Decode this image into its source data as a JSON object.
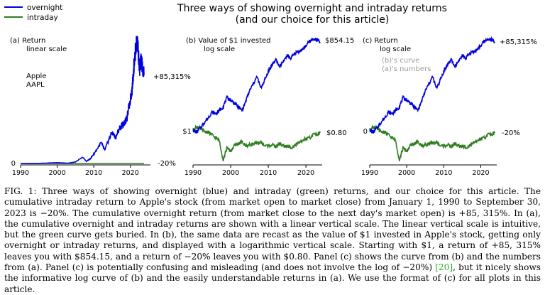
{
  "figure": {
    "title_line1": "Three ways of showing overnight and intraday returns",
    "title_line2": "(and our choice for this article)",
    "legend": [
      {
        "label": "overnight",
        "color": "#0000dd"
      },
      {
        "label": "intraday",
        "color": "#2e7d1e"
      }
    ],
    "panels": [
      {
        "id": "a",
        "label_line1": "(a)  Return",
        "label_line2": "linear scale",
        "company_line1": "Apple",
        "company_line2": "AAPL",
        "end_label_overnight": "+85,315%",
        "end_label_intraday": "-20%",
        "start_label": "0"
      },
      {
        "id": "b",
        "label_line1": "(b)  Value of $1 invested",
        "label_line2": "log scale",
        "end_label_overnight": "$854.15",
        "end_label_intraday": "$0.80",
        "start_label": "$1"
      },
      {
        "id": "c",
        "label_line1": "(c)  Return",
        "label_line2": "log scale",
        "note_line1": "(b)'s curve",
        "note_line2": "(a)'s numbers",
        "end_label_overnight": "+85,315%",
        "end_label_intraday": "-20%",
        "start_label": "0"
      }
    ]
  },
  "chart_data": [
    {
      "type": "line",
      "panel": "a",
      "scale": "linear",
      "x_ticks": [
        "1990",
        "2000",
        "2010",
        "2020"
      ],
      "xlim": [
        1990,
        2023.75
      ],
      "series": [
        {
          "name": "overnight",
          "color": "#0000dd",
          "x": [
            1990,
            1995,
            2000,
            2003,
            2005,
            2007,
            2008,
            2009,
            2010,
            2012,
            2013,
            2014,
            2015,
            2016,
            2017,
            2018,
            2019,
            2020,
            2020.5,
            2021,
            2021.5,
            2022,
            2022.5,
            2023,
            2023.75
          ],
          "y": [
            0,
            100,
            800,
            300,
            1500,
            6000,
            2000,
            4500,
            9000,
            20000,
            13000,
            22000,
            30000,
            25000,
            34000,
            38000,
            42000,
            62000,
            72000,
            95000,
            112000,
            118000,
            90000,
            100000,
            85315
          ]
        },
        {
          "name": "intraday",
          "color": "#2e7d1e",
          "x": [
            1990,
            2023.75
          ],
          "y": [
            0,
            -20
          ]
        }
      ]
    },
    {
      "type": "line",
      "panel": "b",
      "scale": "log",
      "x_ticks": [
        "1990",
        "2000",
        "2010",
        "2020"
      ],
      "xlim": [
        1990,
        2023.75
      ],
      "series": [
        {
          "name": "overnight",
          "color": "#0000dd",
          "x": [
            1990,
            1991,
            1992,
            1993,
            1994,
            1995,
            1996,
            1997,
            1998,
            1999,
            2000,
            2001,
            2002,
            2003,
            2004,
            2005,
            2006,
            2007,
            2008,
            2009,
            2010,
            2011,
            2012,
            2013,
            2014,
            2015,
            2016,
            2017,
            2018,
            2019,
            2020,
            2021,
            2022,
            2023,
            2023.75
          ],
          "y": [
            1,
            0.85,
            1.2,
            1.8,
            2.5,
            4,
            3.5,
            4.5,
            6,
            12,
            10,
            8,
            6,
            4.5,
            9,
            20,
            35,
            60,
            25,
            45,
            90,
            150,
            220,
            130,
            200,
            300,
            250,
            350,
            420,
            480,
            650,
            900,
            1100,
            1000,
            854.15
          ]
        },
        {
          "name": "intraday",
          "color": "#2e7d1e",
          "x": [
            1990,
            1991,
            1992,
            1993,
            1994,
            1995,
            1996,
            1997,
            1998,
            1999,
            2000,
            2001,
            2002,
            2003,
            2004,
            2005,
            2006,
            2007,
            2008,
            2009,
            2010,
            2011,
            2012,
            2013,
            2014,
            2015,
            2016,
            2017,
            2018,
            2019,
            2020,
            2021,
            2022,
            2023,
            2023.75
          ],
          "y": [
            1,
            1.3,
            1.1,
            0.9,
            0.85,
            0.7,
            0.55,
            0.45,
            0.1,
            0.25,
            0.2,
            0.3,
            0.35,
            0.4,
            0.3,
            0.32,
            0.35,
            0.35,
            0.4,
            0.3,
            0.3,
            0.32,
            0.28,
            0.35,
            0.3,
            0.28,
            0.27,
            0.3,
            0.35,
            0.45,
            0.5,
            0.55,
            0.7,
            0.75,
            0.8
          ]
        }
      ]
    },
    {
      "type": "line",
      "panel": "c",
      "scale": "log",
      "x_ticks": [
        "1990",
        "2000",
        "2010",
        "2020"
      ],
      "xlim": [
        1990,
        2023.75
      ],
      "series": [
        {
          "name": "overnight",
          "color": "#0000dd",
          "x": [
            1990,
            1991,
            1992,
            1993,
            1994,
            1995,
            1996,
            1997,
            1998,
            1999,
            2000,
            2001,
            2002,
            2003,
            2004,
            2005,
            2006,
            2007,
            2008,
            2009,
            2010,
            2011,
            2012,
            2013,
            2014,
            2015,
            2016,
            2017,
            2018,
            2019,
            2020,
            2021,
            2022,
            2023,
            2023.75
          ],
          "y": [
            1,
            0.85,
            1.2,
            1.8,
            2.5,
            4,
            3.5,
            4.5,
            6,
            12,
            10,
            8,
            6,
            4.5,
            9,
            20,
            35,
            60,
            25,
            45,
            90,
            150,
            220,
            130,
            200,
            300,
            250,
            350,
            420,
            480,
            650,
            900,
            1100,
            1000,
            854.15
          ]
        },
        {
          "name": "intraday",
          "color": "#2e7d1e",
          "x": [
            1990,
            1991,
            1992,
            1993,
            1994,
            1995,
            1996,
            1997,
            1998,
            1999,
            2000,
            2001,
            2002,
            2003,
            2004,
            2005,
            2006,
            2007,
            2008,
            2009,
            2010,
            2011,
            2012,
            2013,
            2014,
            2015,
            2016,
            2017,
            2018,
            2019,
            2020,
            2021,
            2022,
            2023,
            2023.75
          ],
          "y": [
            1,
            1.3,
            1.1,
            0.9,
            0.85,
            0.7,
            0.55,
            0.45,
            0.1,
            0.25,
            0.2,
            0.3,
            0.35,
            0.4,
            0.3,
            0.32,
            0.35,
            0.35,
            0.4,
            0.3,
            0.3,
            0.32,
            0.28,
            0.35,
            0.3,
            0.28,
            0.27,
            0.3,
            0.35,
            0.45,
            0.5,
            0.55,
            0.7,
            0.75,
            0.8
          ]
        }
      ]
    }
  ],
  "caption": {
    "p1": "FIG. 1:  Three ways of showing overnight (blue) and intraday (green) returns, and our choice for this article.  The cumulative intraday return to Apple's stock (from market open to market close) from January 1, 1990 to September 30, 2023 is −20%.  The cumulative overnight return (from market close to the next day's market open) is +85, 315%.  In (a), the cumulative overnight and intraday returns are shown with a linear vertical scale.  The linear vertical scale is intuitive, but the green curve gets buried. In (b), the same data are recast as the value of $1 invested in Apple's stock, getting only overnight or intraday returns, and displayed with a logarithmic vertical scale.  Starting with $1, a return of +85, 315% leaves you with $854.15, and a return of −20% leaves you with $0.80.  Panel (c) shows the curve from (b) and the numbers from (a).  Panel (c) is potentially confusing and misleading (and does not involve the log of −20%) ",
    "cite": "[20]",
    "p2": ", but it nicely shows the informative log curve of (b) and the easily understandable returns in (a).  We use the format of (c) for all plots in this article."
  }
}
